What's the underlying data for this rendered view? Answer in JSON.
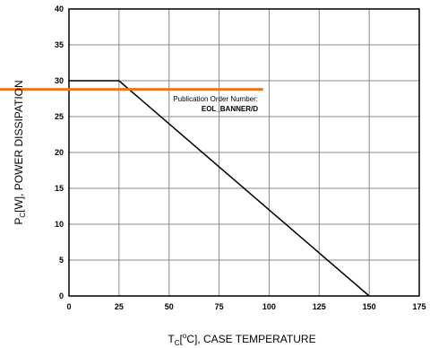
{
  "chart_data": {
    "type": "line",
    "x_tick_labels": [
      "0",
      "25",
      "50",
      "75",
      "100",
      "125",
      "150",
      "175"
    ],
    "y_tick_labels": [
      "0",
      "5",
      "10",
      "15",
      "20",
      "25",
      "30",
      "35",
      "40"
    ],
    "xlim": [
      0,
      175
    ],
    "ylim": [
      0,
      40
    ],
    "grid": true,
    "xlabel": {
      "prefix": "T",
      "sub": "C",
      "mid": "[",
      "sup": "o",
      "rest": "C], CASE TEMPERATURE"
    },
    "ylabel": {
      "prefix": "P",
      "sub": "C",
      "rest": "[W], POWER DISSIPATION"
    },
    "series": [
      {
        "x": [
          0,
          25,
          150
        ],
        "y": [
          30,
          30,
          0
        ],
        "color": "#000000"
      }
    ]
  },
  "banner": {
    "line1": "Publication Order Number:",
    "line2": "EOL_BANNER/D",
    "y_value": 28.8,
    "x_end": 97,
    "color": "#e87722"
  }
}
